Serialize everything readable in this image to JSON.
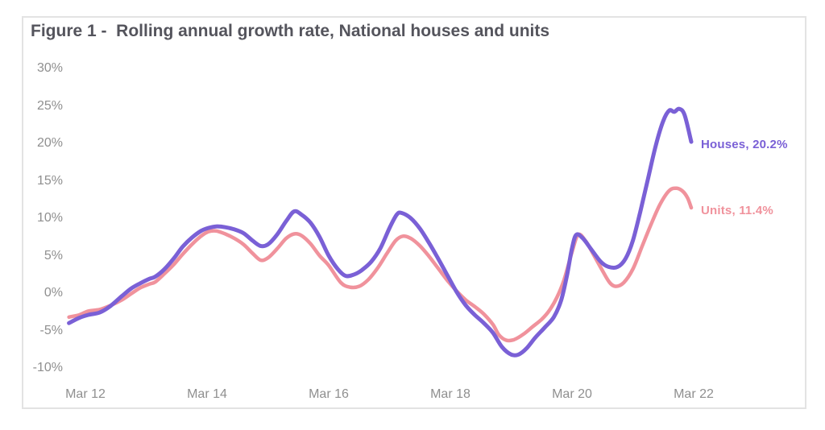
{
  "figure": {
    "title": "Figure 1 -  Rolling annual growth rate, National houses and units"
  },
  "colors": {
    "houses": "#7a60d6",
    "units": "#f0929c",
    "title_text": "#54545c",
    "tick_text": "#8f8f8f",
    "figure_border": "#e3e3e3",
    "background": "#ffffff"
  },
  "chart_data": {
    "type": "line",
    "title": "Figure 1 -  Rolling annual growth rate, National houses and units",
    "xlabel": "",
    "ylabel": "",
    "grid": false,
    "legend_position": "right-end-of-line",
    "x_axis": {
      "tick_labels": [
        "Mar 12",
        "Mar 14",
        "Mar 16",
        "Mar 18",
        "Mar 20",
        "Mar 22"
      ],
      "tick_positions_years": [
        0,
        2,
        4,
        6,
        8,
        10
      ],
      "range_years": [
        -0.45,
        10.45
      ]
    },
    "y_axis": {
      "tick_labels": [
        "30%",
        "25%",
        "20%",
        "15%",
        "10%",
        "5%",
        "0%",
        "-5%",
        "-10%"
      ],
      "tick_values": [
        30,
        25,
        20,
        15,
        10,
        5,
        0,
        -5,
        -10
      ],
      "range": [
        -12.5,
        32.5
      ],
      "unit": "%"
    },
    "series": [
      {
        "name": "Houses",
        "label": "Houses, 20.2%",
        "final_value_pct": 20.2,
        "color": "#7a60d6",
        "stroke_width": 5,
        "points": [
          [
            -0.27,
            -4.0
          ],
          [
            -0.1,
            -3.3
          ],
          [
            0.05,
            -2.9
          ],
          [
            0.23,
            -2.6
          ],
          [
            0.4,
            -1.8
          ],
          [
            0.6,
            -0.4
          ],
          [
            0.75,
            0.6
          ],
          [
            0.9,
            1.3
          ],
          [
            1.05,
            1.9
          ],
          [
            1.15,
            2.2
          ],
          [
            1.3,
            3.2
          ],
          [
            1.45,
            4.6
          ],
          [
            1.6,
            6.2
          ],
          [
            1.75,
            7.4
          ],
          [
            1.9,
            8.3
          ],
          [
            2.02,
            8.7
          ],
          [
            2.15,
            8.9
          ],
          [
            2.3,
            8.8
          ],
          [
            2.45,
            8.5
          ],
          [
            2.6,
            8.0
          ],
          [
            2.75,
            7.0
          ],
          [
            2.88,
            6.3
          ],
          [
            3.0,
            6.5
          ],
          [
            3.15,
            7.8
          ],
          [
            3.3,
            9.6
          ],
          [
            3.43,
            10.9
          ],
          [
            3.55,
            10.5
          ],
          [
            3.7,
            9.4
          ],
          [
            3.85,
            7.5
          ],
          [
            4.0,
            5.0
          ],
          [
            4.15,
            3.2
          ],
          [
            4.28,
            2.3
          ],
          [
            4.42,
            2.5
          ],
          [
            4.55,
            3.1
          ],
          [
            4.7,
            4.2
          ],
          [
            4.85,
            6.0
          ],
          [
            5.0,
            8.7
          ],
          [
            5.12,
            10.5
          ],
          [
            5.2,
            10.7
          ],
          [
            5.35,
            10.0
          ],
          [
            5.5,
            8.6
          ],
          [
            5.65,
            6.7
          ],
          [
            5.8,
            4.6
          ],
          [
            5.95,
            2.4
          ],
          [
            6.1,
            0.2
          ],
          [
            6.25,
            -1.6
          ],
          [
            6.4,
            -2.9
          ],
          [
            6.55,
            -4.0
          ],
          [
            6.7,
            -5.3
          ],
          [
            6.85,
            -7.2
          ],
          [
            7.0,
            -8.2
          ],
          [
            7.12,
            -8.2
          ],
          [
            7.25,
            -7.4
          ],
          [
            7.4,
            -5.9
          ],
          [
            7.55,
            -4.6
          ],
          [
            7.7,
            -3.2
          ],
          [
            7.82,
            -1.0
          ],
          [
            7.92,
            2.5
          ],
          [
            8.0,
            6.0
          ],
          [
            8.07,
            7.8
          ],
          [
            8.18,
            7.3
          ],
          [
            8.32,
            5.8
          ],
          [
            8.47,
            4.2
          ],
          [
            8.6,
            3.5
          ],
          [
            8.75,
            3.5
          ],
          [
            8.88,
            4.6
          ],
          [
            9.0,
            7.0
          ],
          [
            9.12,
            10.8
          ],
          [
            9.25,
            15.3
          ],
          [
            9.38,
            19.8
          ],
          [
            9.5,
            23.0
          ],
          [
            9.6,
            24.4
          ],
          [
            9.68,
            24.2
          ],
          [
            9.76,
            24.6
          ],
          [
            9.85,
            23.8
          ],
          [
            9.96,
            20.2
          ]
        ]
      },
      {
        "name": "Units",
        "label": "Units, 11.4%",
        "final_value_pct": 11.4,
        "color": "#f0929c",
        "stroke_width": 4.5,
        "points": [
          [
            -0.27,
            -3.2
          ],
          [
            -0.1,
            -2.9
          ],
          [
            0.05,
            -2.4
          ],
          [
            0.23,
            -2.2
          ],
          [
            0.4,
            -1.7
          ],
          [
            0.6,
            -0.9
          ],
          [
            0.75,
            -0.1
          ],
          [
            0.9,
            0.7
          ],
          [
            1.05,
            1.2
          ],
          [
            1.15,
            1.5
          ],
          [
            1.3,
            2.6
          ],
          [
            1.45,
            3.8
          ],
          [
            1.6,
            5.2
          ],
          [
            1.75,
            6.5
          ],
          [
            1.9,
            7.6
          ],
          [
            2.02,
            8.2
          ],
          [
            2.15,
            8.3
          ],
          [
            2.3,
            7.9
          ],
          [
            2.45,
            7.3
          ],
          [
            2.6,
            6.5
          ],
          [
            2.75,
            5.3
          ],
          [
            2.88,
            4.4
          ],
          [
            3.0,
            4.7
          ],
          [
            3.15,
            5.9
          ],
          [
            3.3,
            7.3
          ],
          [
            3.43,
            7.9
          ],
          [
            3.55,
            7.7
          ],
          [
            3.7,
            6.6
          ],
          [
            3.85,
            5.0
          ],
          [
            4.0,
            3.7
          ],
          [
            4.2,
            1.4
          ],
          [
            4.35,
            0.8
          ],
          [
            4.5,
            0.9
          ],
          [
            4.65,
            1.8
          ],
          [
            4.8,
            3.3
          ],
          [
            4.95,
            5.2
          ],
          [
            5.1,
            7.0
          ],
          [
            5.22,
            7.6
          ],
          [
            5.35,
            7.3
          ],
          [
            5.5,
            6.3
          ],
          [
            5.65,
            4.9
          ],
          [
            5.8,
            3.3
          ],
          [
            5.95,
            1.7
          ],
          [
            6.1,
            0.3
          ],
          [
            6.25,
            -0.9
          ],
          [
            6.4,
            -1.8
          ],
          [
            6.55,
            -2.8
          ],
          [
            6.7,
            -4.2
          ],
          [
            6.8,
            -5.6
          ],
          [
            6.92,
            -6.3
          ],
          [
            7.05,
            -6.2
          ],
          [
            7.2,
            -5.5
          ],
          [
            7.35,
            -4.5
          ],
          [
            7.5,
            -3.5
          ],
          [
            7.62,
            -2.4
          ],
          [
            7.75,
            -0.6
          ],
          [
            7.87,
            1.8
          ],
          [
            8.0,
            5.5
          ],
          [
            8.1,
            7.8
          ],
          [
            8.22,
            7.0
          ],
          [
            8.35,
            5.2
          ],
          [
            8.5,
            3.0
          ],
          [
            8.62,
            1.4
          ],
          [
            8.72,
            0.9
          ],
          [
            8.85,
            1.4
          ],
          [
            9.0,
            3.2
          ],
          [
            9.15,
            6.2
          ],
          [
            9.3,
            9.2
          ],
          [
            9.45,
            11.9
          ],
          [
            9.6,
            13.7
          ],
          [
            9.72,
            14.0
          ],
          [
            9.82,
            13.6
          ],
          [
            9.9,
            12.7
          ],
          [
            9.96,
            11.4
          ]
        ]
      }
    ]
  }
}
